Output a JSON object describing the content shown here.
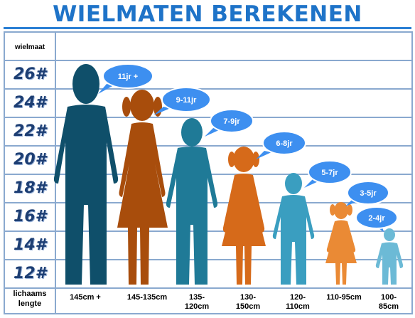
{
  "title": "WIELMATEN BEREKENEN",
  "header_label": "wielmaat",
  "footer_label_line1": "lichaams",
  "footer_label_line2": "lengte",
  "wheel_sizes": [
    "26#",
    "24#",
    "22#",
    "20#",
    "18#",
    "16#",
    "14#",
    "12#"
  ],
  "ages": [
    "11jr +",
    "9-11jr",
    "7-9jr",
    "6-8jr",
    "5-7jr",
    "3-5jr",
    "2-4jr"
  ],
  "heights": [
    {
      "line1": "145cm +",
      "line2": ""
    },
    {
      "line1": "145-135cm",
      "line2": ""
    },
    {
      "line1": "135-",
      "line2": "120cm"
    },
    {
      "line1": "130-",
      "line2": "150cm"
    },
    {
      "line1": "120-",
      "line2": "110cm"
    },
    {
      "line1": "110-95cm",
      "line2": ""
    },
    {
      "line1": "100-",
      "line2": "85cm"
    }
  ],
  "colors": {
    "title": "#1e73c8",
    "grid": "#8aa9cf",
    "bubble": "#3d8ff0",
    "figure_1": "#0f4f6a",
    "figure_2": "#a84d0c",
    "figure_3": "#1f7a97",
    "figure_4": "#d66a1a",
    "figure_5": "#3a9ec0",
    "figure_6": "#ea8a35",
    "figure_7": "#6cbad6"
  }
}
